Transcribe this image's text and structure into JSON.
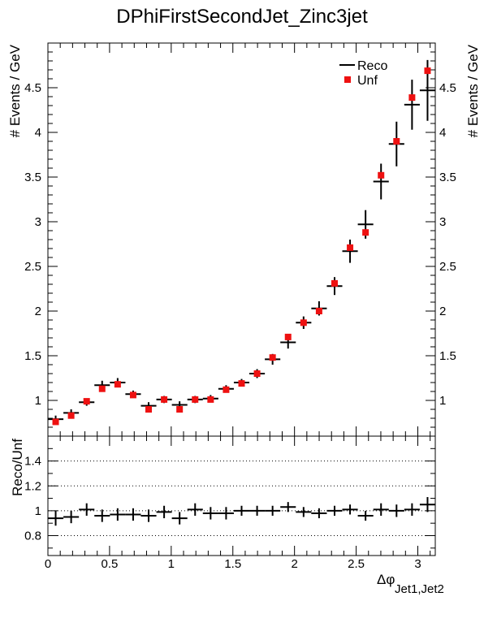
{
  "chart_data": [
    {
      "type": "scatter",
      "title": "DPhiFirstSecondJet_Zinc3jet",
      "ylabel": "# Events / GeV",
      "xlabel_main": "Δφ",
      "xlabel_sub": "Jet1,Jet2",
      "xlim": [
        0,
        3.1416
      ],
      "ylim": [
        0.6,
        5.0
      ],
      "yticks": [
        1,
        1.5,
        2,
        2.5,
        3,
        3.5,
        4,
        4.5
      ],
      "ytick_labels": [
        "1",
        "1.5",
        "2",
        "2.5",
        "3",
        "3.5",
        "4",
        "4.5"
      ],
      "legend_position": "top-right",
      "legend": [
        {
          "name": "Reco",
          "marker": "cross",
          "color": "#000000"
        },
        {
          "name": "Unf",
          "marker": "square",
          "color": "#ee1111"
        }
      ],
      "bin_width": 0.1257,
      "x": [
        0.0628,
        0.1885,
        0.3142,
        0.4398,
        0.5655,
        0.6912,
        0.8168,
        0.9425,
        1.0681,
        1.1938,
        1.3195,
        1.4451,
        1.5708,
        1.6965,
        1.8221,
        1.9478,
        2.0735,
        2.1991,
        2.3248,
        2.4504,
        2.5761,
        2.7018,
        2.8274,
        2.9531,
        3.0788
      ],
      "series": [
        {
          "name": "Reco",
          "values": [
            0.79,
            0.86,
            0.98,
            1.17,
            1.2,
            1.07,
            0.94,
            1.01,
            0.95,
            1.01,
            1.02,
            1.13,
            1.2,
            1.3,
            1.46,
            1.65,
            1.87,
            2.03,
            2.28,
            2.67,
            2.97,
            3.45,
            3.87,
            4.31,
            4.47
          ],
          "errors": [
            0.04,
            0.04,
            0.04,
            0.05,
            0.05,
            0.04,
            0.04,
            0.04,
            0.04,
            0.04,
            0.04,
            0.04,
            0.04,
            0.05,
            0.06,
            0.07,
            0.07,
            0.08,
            0.1,
            0.13,
            0.16,
            0.2,
            0.25,
            0.28,
            0.34
          ]
        },
        {
          "name": "Unf",
          "values": [
            0.76,
            0.83,
            0.99,
            1.13,
            1.18,
            1.06,
            0.9,
            1.01,
            0.9,
            1.01,
            1.01,
            1.12,
            1.19,
            1.3,
            1.48,
            1.71,
            1.87,
            2.0,
            2.31,
            2.71,
            2.88,
            3.52,
            3.9,
            4.39,
            4.69
          ]
        }
      ]
    },
    {
      "type": "scatter",
      "ylabel": "Reco/Unf",
      "xlim": [
        0,
        3.1416
      ],
      "ylim": [
        0.64,
        1.6
      ],
      "yticks": [
        0.8,
        1,
        1.2,
        1.4
      ],
      "ytick_labels": [
        "0.8",
        "1",
        "1.2",
        "1.4"
      ],
      "gridlines_y": [
        0.8,
        1.0,
        1.2,
        1.4
      ],
      "xticks": [
        0,
        0.5,
        1,
        1.5,
        2,
        2.5,
        3
      ],
      "xtick_labels": [
        "0",
        "0.5",
        "1",
        "1.5",
        "2",
        "2.5",
        "3"
      ],
      "series": [
        {
          "name": "Reco/Unf",
          "values": [
            0.94,
            0.95,
            1.01,
            0.96,
            0.97,
            0.97,
            0.96,
            0.99,
            0.94,
            1.01,
            0.98,
            0.98,
            1.0,
            1.0,
            1.0,
            1.03,
            0.99,
            0.98,
            1.0,
            1.01,
            0.96,
            1.01,
            1.0,
            1.01,
            1.05
          ],
          "errors": [
            0.06,
            0.05,
            0.05,
            0.05,
            0.05,
            0.05,
            0.05,
            0.05,
            0.05,
            0.05,
            0.05,
            0.05,
            0.04,
            0.04,
            0.04,
            0.04,
            0.04,
            0.04,
            0.04,
            0.04,
            0.04,
            0.05,
            0.05,
            0.05,
            0.06
          ]
        }
      ]
    }
  ]
}
